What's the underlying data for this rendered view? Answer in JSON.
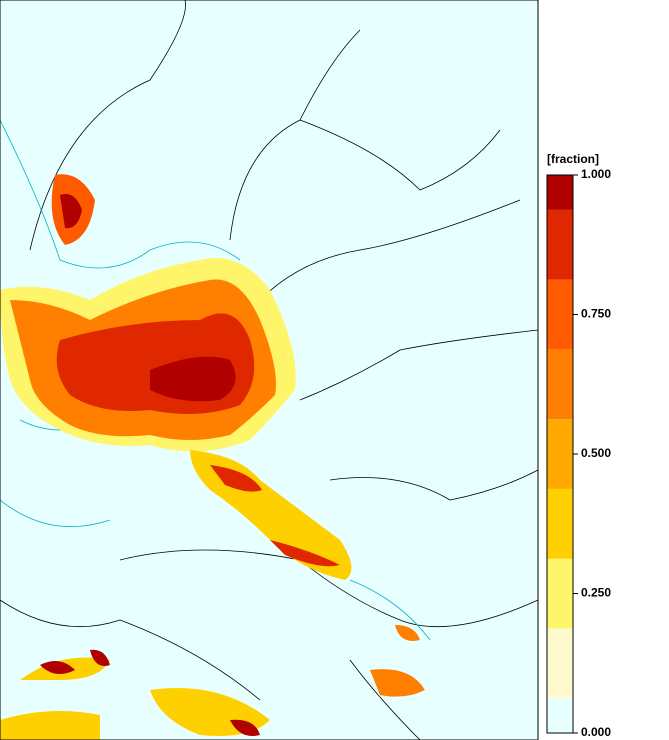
{
  "chart_data": {
    "type": "heatmap",
    "colorbar": {
      "label": "[fraction]",
      "lim": [
        0,
        1
      ],
      "bounds": [
        0,
        0.0625,
        0.1875,
        0.3125,
        0.4375,
        0.5625,
        0.6875,
        0.8125,
        0.9375,
        1
      ],
      "colors": [
        "#e8ffff",
        "#fffacd",
        "#fff56a",
        "#ffd000",
        "#ffa800",
        "#ff8000",
        "#ff5a00",
        "#e02800",
        "#b00000"
      ],
      "ticks": [
        {
          "value": 0,
          "label": "0.000"
        },
        {
          "value": 0.25,
          "label": "0.250"
        },
        {
          "value": 0.5,
          "label": "0.500"
        },
        {
          "value": 0.75,
          "label": "0.750"
        },
        {
          "value": 1,
          "label": "1.000"
        }
      ]
    }
  }
}
